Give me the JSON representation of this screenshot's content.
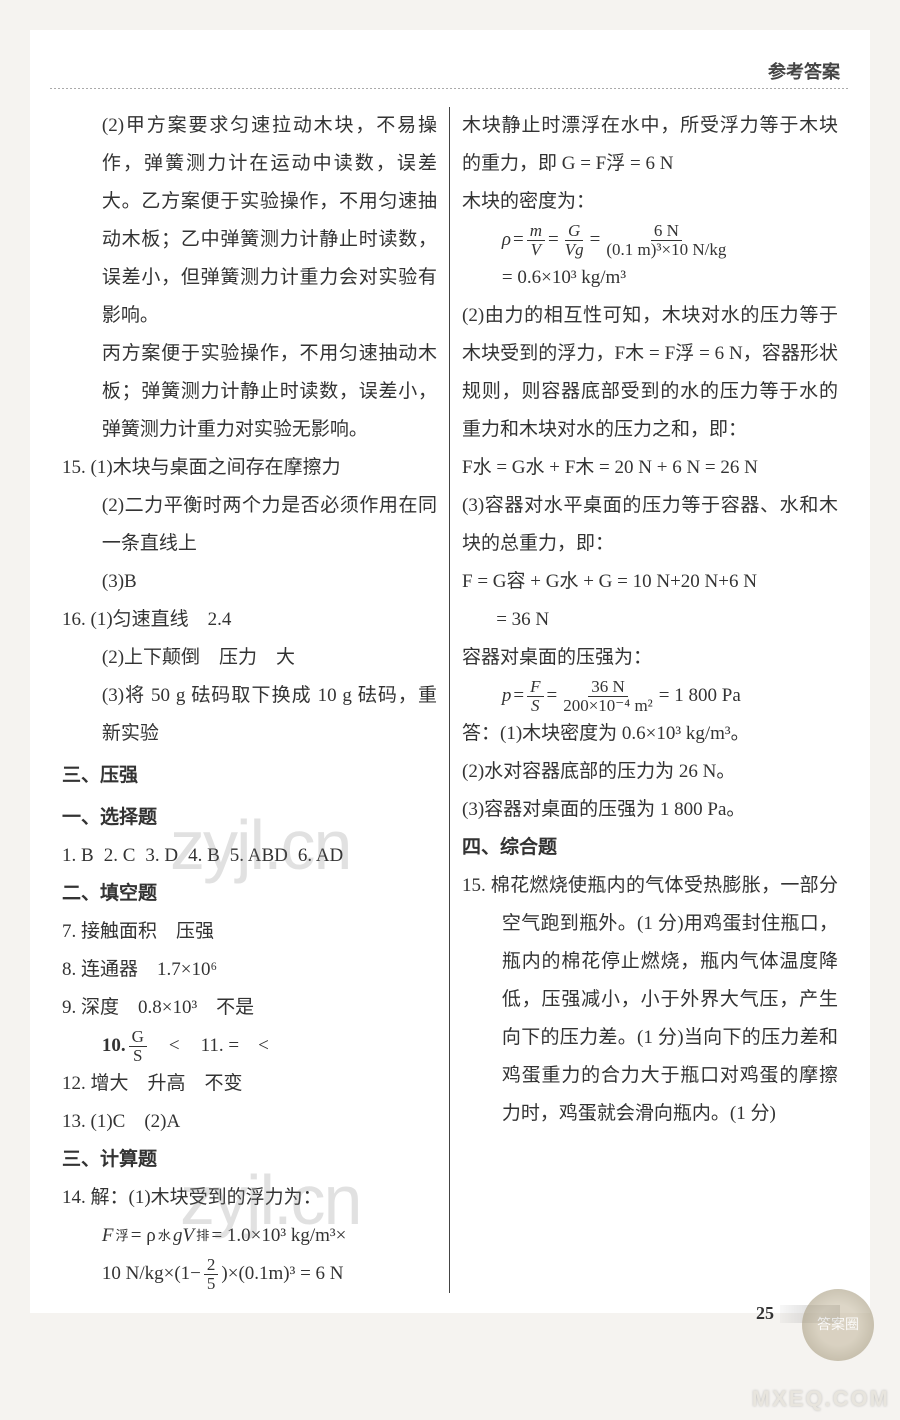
{
  "header": {
    "title": "参考答案"
  },
  "left": {
    "p15_line2": "(2)甲方案要求匀速拉动木块，不易操作，弹簧测力计在运动中读数，误差大。乙方案便于实验操作，不用匀速抽动木板；乙中弹簧测力计静止时读数，误差小，但弹簧测力计重力会对实验有影响。",
    "p15_line3": "丙方案便于实验操作，不用匀速抽动木板；弹簧测力计静止时读数，误差小，弹簧测力计重力对实验无影响。",
    "q15_1": "15. (1)木块与桌面之间存在摩擦力",
    "q15_2": "(2)二力平衡时两个力是否必须作用在同一条直线上",
    "q15_3": "(3)B",
    "q16_1": "16. (1)匀速直线　2.4",
    "q16_2": "(2)上下颠倒　压力　大",
    "q16_3": "(3)将 50 g 砝码取下换成 10 g 砝码，重新实验",
    "section3": "三、压强",
    "sec_choice": "一、选择题",
    "choice": {
      "a1": "1. B",
      "a2": "2. C",
      "a3": "3. D",
      "a4": "4. B",
      "a5": "5. ABD",
      "a6": "6. AD"
    },
    "sec_fill": "二、填空题",
    "q7": "7. 接触面积　压强",
    "q8": "8. 连通器　1.7×10⁶",
    "q9": "9. 深度　0.8×10³　不是",
    "q10_label": "10.",
    "q10_after": "　<　",
    "q11": "11. =　<",
    "q12": "12. 增大　升高　不变",
    "q13": "13. (1)C　(2)A",
    "sec_calc": "三、计算题",
    "q14_head": "14. 解：(1)木块受到的浮力为：",
    "q14_f1a": "F",
    "q14_f1b": " = ρ",
    "q14_f1c": "gV",
    "q14_f1d": " = 1.0×10³ kg/m³×",
    "q14_f2a": "10 N/kg×(1−",
    "q14_f2b": ")×(0.1m)³ = 6 N"
  },
  "right": {
    "r1": "木块静止时漂浮在水中，所受浮力等于木块的重力，即 G = F浮 = 6 N",
    "r2": "木块的密度为：",
    "rho_eq_text": "6 N",
    "rho_den_text": "(0.1 m)³×10 N/kg",
    "rho_result": "= 0.6×10³ kg/m³",
    "r3": "(2)由力的相互性可知，木块对水的压力等于木块受到的浮力，F木 = F浮 = 6 N，容器形状规则，则容器底部受到的水的压力等于水的重力和木块对水的压力之和，即：",
    "r4": "F水 = G水 + F木 = 20 N + 6 N = 26 N",
    "r5": "(3)容器对水平桌面的压力等于容器、水和木块的总重力，即：",
    "r6": "F = G容 + G水 + G = 10 N+20 N+6 N",
    "r6b": "   = 36 N",
    "r7": "容器对桌面的压强为：",
    "p_num": "36 N",
    "p_den": "200×10⁻⁴ m²",
    "p_res": " = 1 800 Pa",
    "r8": "答：(1)木块密度为 0.6×10³ kg/m³。",
    "r9": "(2)水对容器底部的压力为 26 N。",
    "r10": "(3)容器对桌面的压强为 1 800 Pa。",
    "sec4": "四、综合题",
    "q15r": "15. 棉花燃烧使瓶内的气体受热膨胀，一部分空气跑到瓶外。(1 分)用鸡蛋封住瓶口，瓶内的棉花停止燃烧，瓶内气体温度降低，压强减小，小于外界大气压，产生向下的压力差。(1 分)当向下的压力差和鸡蛋重力的合力大于瓶口对鸡蛋的摩擦力时，鸡蛋就会滑向瓶内。(1 分)"
  },
  "footer": {
    "pagenum": "25",
    "wm": "zyjl.cn",
    "logo_text": "答案圈",
    "url": "MXEQ.COM"
  }
}
